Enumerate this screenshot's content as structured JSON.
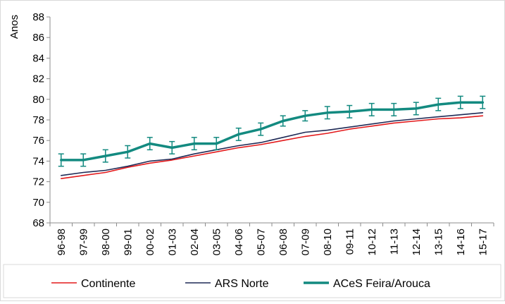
{
  "chart_data": {
    "type": "line",
    "title": "",
    "xlabel": "",
    "ylabel": "Anos",
    "ylim": [
      68,
      88
    ],
    "yticks": [
      68,
      70,
      72,
      74,
      76,
      78,
      80,
      82,
      84,
      86,
      88
    ],
    "grid": false,
    "legend_position": "bottom",
    "categories": [
      "96-98",
      "97-99",
      "98-00",
      "99-01",
      "00-02",
      "01-03",
      "02-04",
      "03-05",
      "04-06",
      "05-07",
      "06-08",
      "07-09",
      "08-10",
      "09-11",
      "10-12",
      "11-13",
      "12-14",
      "13-15",
      "14-16",
      "15-17"
    ],
    "series": [
      {
        "name": "Continente",
        "color": "#e31a1c",
        "values": [
          72.3,
          72.6,
          72.9,
          73.4,
          73.8,
          74.1,
          74.5,
          74.9,
          75.3,
          75.6,
          76.0,
          76.4,
          76.7,
          77.1,
          77.4,
          77.7,
          77.9,
          78.1,
          78.2,
          78.4
        ]
      },
      {
        "name": "ARS Norte",
        "color": "#1f2a56",
        "values": [
          72.6,
          72.9,
          73.1,
          73.5,
          74.0,
          74.2,
          74.7,
          75.1,
          75.5,
          75.8,
          76.3,
          76.8,
          77.0,
          77.3,
          77.6,
          77.9,
          78.1,
          78.3,
          78.5,
          78.7
        ]
      },
      {
        "name": "ACeS Feira/Arouca",
        "color": "#138a80",
        "values": [
          74.1,
          74.1,
          74.5,
          74.9,
          75.7,
          75.3,
          75.7,
          75.7,
          76.6,
          77.1,
          77.9,
          78.4,
          78.7,
          78.8,
          79.0,
          79.0,
          79.1,
          79.5,
          79.7,
          79.7
        ],
        "error_low": [
          73.5,
          73.5,
          73.9,
          74.3,
          75.1,
          74.7,
          75.1,
          75.1,
          76.0,
          76.5,
          77.4,
          77.9,
          78.1,
          78.2,
          78.4,
          78.4,
          78.5,
          78.9,
          79.1,
          79.1
        ],
        "error_high": [
          74.7,
          74.7,
          75.1,
          75.5,
          76.3,
          75.9,
          76.3,
          76.3,
          77.2,
          77.7,
          78.4,
          78.9,
          79.3,
          79.4,
          79.6,
          79.6,
          79.7,
          80.1,
          80.3,
          80.3
        ]
      }
    ]
  }
}
